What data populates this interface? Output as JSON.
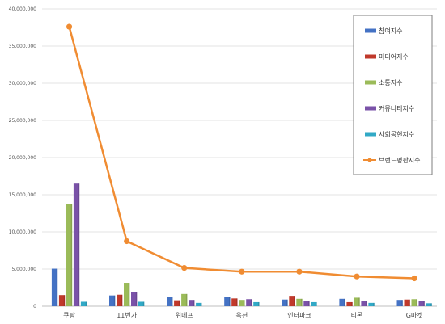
{
  "chart_data": {
    "type": "bar",
    "categories": [
      "쿠팡",
      "11번가",
      "위메프",
      "옥션",
      "인터파크",
      "티몬",
      "G마켓"
    ],
    "ylim": [
      0,
      40000000
    ],
    "yticks": [
      "0",
      "5,000,000",
      "10,000,000",
      "15,000,000",
      "20,000,000",
      "25,000,000",
      "30,000,000",
      "35,000,000",
      "40,000,000"
    ],
    "series": [
      {
        "name": "참여지수",
        "type": "bar",
        "color": "#4472C4",
        "values": [
          5050000,
          1450000,
          1300000,
          1200000,
          900000,
          1000000,
          850000
        ]
      },
      {
        "name": "미디어지수",
        "type": "bar",
        "color": "#C0392B",
        "values": [
          1500000,
          1550000,
          800000,
          1050000,
          1400000,
          550000,
          900000
        ]
      },
      {
        "name": "소통지수",
        "type": "bar",
        "color": "#9BBB59",
        "values": [
          13700000,
          3150000,
          1650000,
          850000,
          1000000,
          1150000,
          950000
        ]
      },
      {
        "name": "커뮤니티지수",
        "type": "bar",
        "color": "#7A52A8",
        "values": [
          16500000,
          1950000,
          850000,
          950000,
          750000,
          700000,
          750000
        ]
      },
      {
        "name": "사회공헌지수",
        "type": "bar",
        "color": "#31A9C6",
        "values": [
          600000,
          600000,
          450000,
          550000,
          550000,
          450000,
          400000
        ]
      },
      {
        "name": "브랜드평판지수",
        "type": "line",
        "color": "#F08C32",
        "values": [
          37600000,
          8750000,
          5150000,
          4650000,
          4650000,
          4000000,
          3750000
        ]
      }
    ],
    "grid": true,
    "legend": "right"
  }
}
